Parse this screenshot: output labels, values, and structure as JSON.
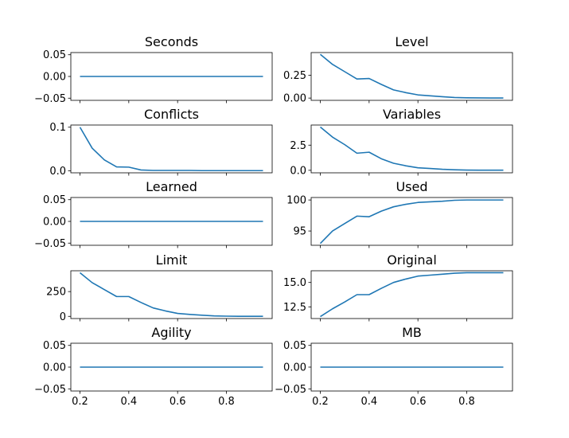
{
  "chart_data": [
    {
      "type": "line",
      "title": "Seconds",
      "x": [
        0.2,
        0.25,
        0.3,
        0.35,
        0.4,
        0.45,
        0.5,
        0.55,
        0.6,
        0.65,
        0.7,
        0.75,
        0.8,
        0.85,
        0.9,
        0.95
      ],
      "y": [
        0,
        0,
        0,
        0,
        0,
        0,
        0,
        0,
        0,
        0,
        0,
        0,
        0,
        0,
        0,
        0
      ],
      "xlim": [
        0.1625,
        0.9875
      ],
      "ylim": [
        -0.055,
        0.055
      ],
      "yticks": [
        -0.05,
        0.0,
        0.05
      ],
      "ytick_labels": [
        "−0.05",
        "0.00",
        "0.05"
      ],
      "xticks": [
        0.2,
        0.4,
        0.6,
        0.8
      ],
      "xtick_labels": [],
      "grid": false
    },
    {
      "type": "line",
      "title": "Level",
      "x": [
        0.2,
        0.25,
        0.3,
        0.35,
        0.4,
        0.45,
        0.5,
        0.55,
        0.6,
        0.65,
        0.7,
        0.75,
        0.8,
        0.85,
        0.9,
        0.95
      ],
      "y": [
        0.48,
        0.37,
        0.29,
        0.21,
        0.215,
        0.15,
        0.09,
        0.06,
        0.035,
        0.025,
        0.015,
        0.006,
        0.003,
        0.002,
        0.001,
        0.001
      ],
      "xlim": [
        0.1625,
        0.9875
      ],
      "ylim": [
        -0.025,
        0.5
      ],
      "yticks": [
        0.0,
        0.25
      ],
      "ytick_labels": [
        "0.00",
        "0.25"
      ],
      "xticks": [
        0.2,
        0.4,
        0.6,
        0.8
      ],
      "xtick_labels": [],
      "grid": false
    },
    {
      "type": "line",
      "title": "Conflicts",
      "x": [
        0.2,
        0.25,
        0.3,
        0.35,
        0.4,
        0.45,
        0.5,
        0.55,
        0.6,
        0.65,
        0.7,
        0.75,
        0.8,
        0.85,
        0.9,
        0.95
      ],
      "y": [
        0.1,
        0.052,
        0.025,
        0.009,
        0.0085,
        0.002,
        0.001,
        0.001,
        0.001,
        0.001,
        0.0005,
        0.0005,
        0.0005,
        0.0005,
        0.0005,
        0.0005
      ],
      "xlim": [
        0.1625,
        0.9875
      ],
      "ylim": [
        -0.0045,
        0.105
      ],
      "yticks": [
        0.0,
        0.1
      ],
      "ytick_labels": [
        "0.0",
        "0.1"
      ],
      "xticks": [
        0.2,
        0.4,
        0.6,
        0.8
      ],
      "xtick_labels": [],
      "grid": false
    },
    {
      "type": "line",
      "title": "Variables",
      "x": [
        0.2,
        0.25,
        0.3,
        0.35,
        0.4,
        0.45,
        0.5,
        0.55,
        0.6,
        0.65,
        0.7,
        0.75,
        0.8,
        0.85,
        0.9,
        0.95
      ],
      "y": [
        4.3,
        3.3,
        2.55,
        1.7,
        1.8,
        1.15,
        0.7,
        0.45,
        0.25,
        0.18,
        0.1,
        0.05,
        0.02,
        0.01,
        0.01,
        0.01
      ],
      "xlim": [
        0.1625,
        0.9875
      ],
      "ylim": [
        -0.25,
        4.5
      ],
      "yticks": [
        0.0,
        2.5
      ],
      "ytick_labels": [
        "0.0",
        "2.5"
      ],
      "xticks": [
        0.2,
        0.4,
        0.6,
        0.8
      ],
      "xtick_labels": [],
      "grid": false
    },
    {
      "type": "line",
      "title": "Learned",
      "x": [
        0.2,
        0.25,
        0.3,
        0.35,
        0.4,
        0.45,
        0.5,
        0.55,
        0.6,
        0.65,
        0.7,
        0.75,
        0.8,
        0.85,
        0.9,
        0.95
      ],
      "y": [
        0,
        0,
        0,
        0,
        0,
        0,
        0,
        0,
        0,
        0,
        0,
        0,
        0,
        0,
        0,
        0
      ],
      "xlim": [
        0.1625,
        0.9875
      ],
      "ylim": [
        -0.055,
        0.055
      ],
      "yticks": [
        -0.05,
        0.0,
        0.05
      ],
      "ytick_labels": [
        "−0.05",
        "0.00",
        "0.05"
      ],
      "xticks": [
        0.2,
        0.4,
        0.6,
        0.8
      ],
      "xtick_labels": [],
      "grid": false
    },
    {
      "type": "line",
      "title": "Used",
      "x": [
        0.2,
        0.25,
        0.3,
        0.35,
        0.4,
        0.45,
        0.5,
        0.55,
        0.6,
        0.65,
        0.7,
        0.75,
        0.8,
        0.85,
        0.9,
        0.95
      ],
      "y": [
        93.0,
        95.0,
        96.2,
        97.4,
        97.3,
        98.2,
        98.9,
        99.3,
        99.6,
        99.7,
        99.8,
        99.95,
        100.0,
        100.0,
        100.0,
        100.0
      ],
      "xlim": [
        0.1625,
        0.9875
      ],
      "ylim": [
        92.7,
        100.4
      ],
      "yticks": [
        95,
        100
      ],
      "ytick_labels": [
        "95",
        "100"
      ],
      "xticks": [
        0.2,
        0.4,
        0.6,
        0.8
      ],
      "xtick_labels": [],
      "grid": false
    },
    {
      "type": "line",
      "title": "Limit",
      "x": [
        0.2,
        0.25,
        0.3,
        0.35,
        0.4,
        0.45,
        0.5,
        0.55,
        0.6,
        0.65,
        0.7,
        0.75,
        0.8,
        0.85,
        0.9,
        0.95
      ],
      "y": [
        440,
        340,
        270,
        200,
        200,
        140,
        85,
        55,
        30,
        20,
        12,
        5,
        2,
        1,
        1,
        1
      ],
      "xlim": [
        0.1625,
        0.9875
      ],
      "ylim": [
        -22,
        460
      ],
      "yticks": [
        0,
        250
      ],
      "ytick_labels": [
        "0",
        "250"
      ],
      "xticks": [
        0.2,
        0.4,
        0.6,
        0.8
      ],
      "xtick_labels": [],
      "grid": false
    },
    {
      "type": "line",
      "title": "Original",
      "x": [
        0.2,
        0.25,
        0.3,
        0.35,
        0.4,
        0.45,
        0.5,
        0.55,
        0.6,
        0.65,
        0.7,
        0.75,
        0.8,
        0.85,
        0.9,
        0.95
      ],
      "y": [
        11.5,
        12.3,
        13.0,
        13.75,
        13.75,
        14.4,
        15.0,
        15.35,
        15.65,
        15.75,
        15.85,
        15.95,
        16.0,
        16.0,
        16.0,
        16.0
      ],
      "xlim": [
        0.1625,
        0.9875
      ],
      "ylim": [
        11.3,
        16.2
      ],
      "yticks": [
        12.5,
        15.0
      ],
      "ytick_labels": [
        "12.5",
        "15.0"
      ],
      "xticks": [
        0.2,
        0.4,
        0.6,
        0.8
      ],
      "xtick_labels": [],
      "grid": false
    },
    {
      "type": "line",
      "title": "Agility",
      "x": [
        0.2,
        0.25,
        0.3,
        0.35,
        0.4,
        0.45,
        0.5,
        0.55,
        0.6,
        0.65,
        0.7,
        0.75,
        0.8,
        0.85,
        0.9,
        0.95
      ],
      "y": [
        0,
        0,
        0,
        0,
        0,
        0,
        0,
        0,
        0,
        0,
        0,
        0,
        0,
        0,
        0,
        0
      ],
      "xlim": [
        0.1625,
        0.9875
      ],
      "ylim": [
        -0.055,
        0.055
      ],
      "yticks": [
        -0.05,
        0.0,
        0.05
      ],
      "ytick_labels": [
        "−0.05",
        "0.00",
        "0.05"
      ],
      "xticks": [
        0.2,
        0.4,
        0.6,
        0.8
      ],
      "xtick_labels": [
        "0.2",
        "0.4",
        "0.6",
        "0.8"
      ],
      "grid": false
    },
    {
      "type": "line",
      "title": "MB",
      "x": [
        0.2,
        0.25,
        0.3,
        0.35,
        0.4,
        0.45,
        0.5,
        0.55,
        0.6,
        0.65,
        0.7,
        0.75,
        0.8,
        0.85,
        0.9,
        0.95
      ],
      "y": [
        0,
        0,
        0,
        0,
        0,
        0,
        0,
        0,
        0,
        0,
        0,
        0,
        0,
        0,
        0,
        0
      ],
      "xlim": [
        0.1625,
        0.9875
      ],
      "ylim": [
        -0.055,
        0.055
      ],
      "yticks": [
        -0.05,
        0.0,
        0.05
      ],
      "ytick_labels": [
        "−0.05",
        "0.00",
        "0.05"
      ],
      "xticks": [
        0.2,
        0.4,
        0.6,
        0.8
      ],
      "xtick_labels": [
        "0.2",
        "0.4",
        "0.6",
        "0.8"
      ],
      "grid": false
    }
  ],
  "colors": {
    "line": "#1f77b4",
    "axes": "#000000",
    "background": "#ffffff"
  }
}
